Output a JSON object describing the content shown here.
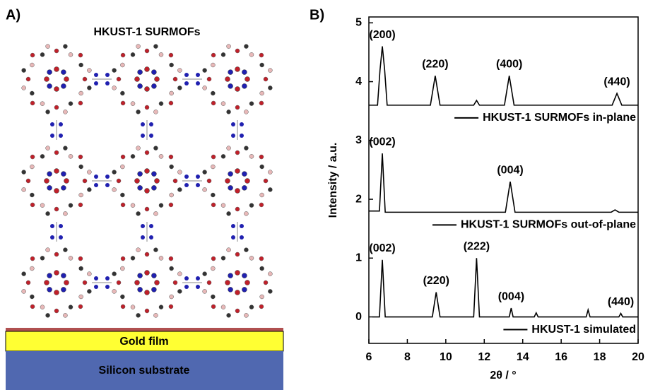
{
  "panel_a": {
    "label": "A)",
    "title": "HKUST-1 SURMOFs",
    "layers": [
      "Gold film",
      "Silicon substrate"
    ]
  },
  "chart_data": {
    "type": "line",
    "panel_label": "B)",
    "x_label": "2θ / °",
    "y_label": "Intensity / a.u.",
    "xlim": [
      6,
      20
    ],
    "xticks": [
      6,
      8,
      10,
      12,
      14,
      16,
      18,
      20
    ],
    "ylim": [
      -0.45,
      5.1
    ],
    "yticks": [
      0,
      1,
      2,
      3,
      4,
      5
    ],
    "series": [
      {
        "name": "HKUST-1 SURMOFs in-plane",
        "color": "#000000",
        "x": [
          6,
          6.45,
          6.58,
          6.7,
          6.82,
          6.95,
          9.2,
          9.45,
          9.7,
          11.45,
          11.6,
          11.75,
          13.05,
          13.3,
          13.55,
          18.65,
          18.9,
          19.15,
          20
        ],
        "values": [
          3.6,
          3.6,
          4.2,
          4.6,
          4.2,
          3.6,
          3.6,
          4.1,
          3.6,
          3.6,
          3.68,
          3.6,
          3.6,
          4.1,
          3.6,
          3.6,
          3.8,
          3.6,
          3.6
        ],
        "peaks": [
          {
            "label": "(200)",
            "x": 6.7
          },
          {
            "label": "(220)",
            "x": 9.45
          },
          {
            "label": "(400)",
            "x": 13.3
          },
          {
            "label": "(440)",
            "x": 18.9
          }
        ]
      },
      {
        "name": "HKUST-1 SURMOFs out-of-plane",
        "color": "#000000",
        "x": [
          6,
          6.55,
          6.7,
          6.85,
          13.1,
          13.35,
          13.6,
          18.6,
          18.8,
          19,
          20
        ],
        "values": [
          1.8,
          1.8,
          2.78,
          1.78,
          1.78,
          2.3,
          1.78,
          1.78,
          1.82,
          1.78,
          1.78
        ],
        "peaks": [
          {
            "label": "(002)",
            "x": 6.7
          },
          {
            "label": "(004)",
            "x": 13.35
          }
        ]
      },
      {
        "name": "HKUST-1 simulated",
        "color": "#000000",
        "x": [
          6.2,
          6.55,
          6.7,
          6.85,
          9.3,
          9.5,
          9.7,
          11.45,
          11.6,
          11.75,
          13.3,
          13.4,
          13.5,
          14.6,
          14.7,
          14.8,
          17.3,
          17.4,
          17.5,
          19.0,
          19.1,
          19.2,
          20
        ],
        "values": [
          0,
          0,
          0.97,
          0,
          0,
          0.42,
          0,
          0,
          1.0,
          0,
          0,
          0.15,
          0,
          0,
          0.07,
          0,
          0,
          0.12,
          0,
          0,
          0.06,
          0,
          0
        ],
        "peaks": [
          {
            "label": "(002)",
            "x": 6.7
          },
          {
            "label": "(220)",
            "x": 9.5
          },
          {
            "label": "(222)",
            "x": 11.6
          },
          {
            "label": "(004)",
            "x": 13.4
          },
          {
            "label": "(440)",
            "x": 19.1
          }
        ]
      }
    ]
  }
}
